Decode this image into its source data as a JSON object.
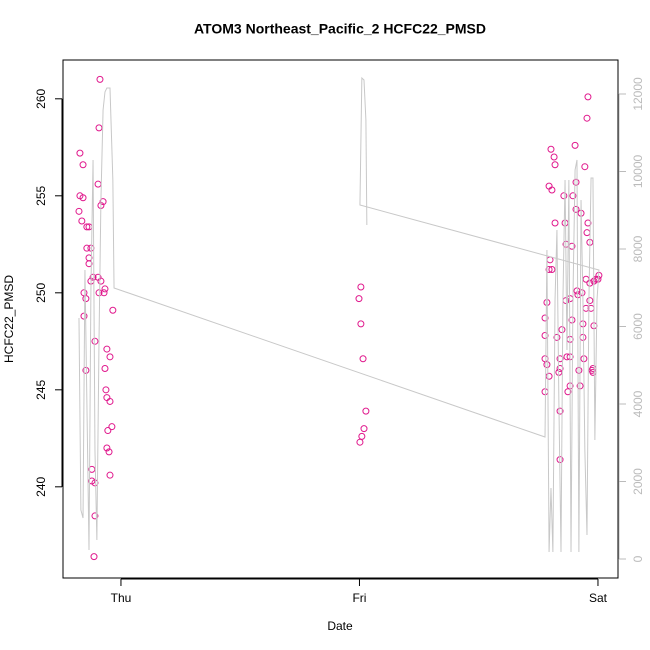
{
  "chart_data": {
    "type": "scatter",
    "title": "ATOM3 Northeast_Pacific_2 HCFC22_PMSD",
    "xlabel": "Date",
    "ylabel": "HCFC22_PMSD",
    "xlim": [
      -0.243,
      2.084
    ],
    "xticks": [
      {
        "value": 0,
        "label": "Thu"
      },
      {
        "value": 1,
        "label": "Fri"
      },
      {
        "value": 2,
        "label": "Sat"
      }
    ],
    "ylim": [
      235.3,
      262.0
    ],
    "yticks": [
      240,
      245,
      250,
      255,
      260
    ],
    "y2lim": [
      -490,
      12877
    ],
    "y2ticks": [
      0,
      2000,
      4000,
      6000,
      8000,
      10000,
      12000
    ],
    "series": [
      {
        "type": "scatter",
        "color": "#e0178c",
        "x": [
          -0.172,
          -0.159,
          -0.172,
          -0.159,
          -0.176,
          -0.164,
          -0.143,
          -0.134,
          -0.143,
          -0.126,
          -0.134,
          -0.134,
          -0.117,
          -0.155,
          -0.147,
          -0.126,
          -0.155,
          -0.109,
          -0.147,
          -0.122,
          -0.122,
          -0.109,
          -0.109,
          -0.113,
          -0.088,
          -0.092,
          -0.096,
          -0.084,
          -0.075,
          -0.096,
          -0.084,
          -0.067,
          -0.092,
          -0.071,
          -0.059,
          -0.046,
          -0.067,
          -0.063,
          -0.059,
          -0.046,
          -0.055,
          -0.038,
          -0.059,
          -0.05,
          -0.046,
          -0.034,
          1.006,
          0.998,
          1.006,
          1.015,
          1.027,
          1.019,
          1.01,
          1.002,
          1.803,
          1.816,
          1.82,
          1.795,
          1.807,
          1.82,
          1.799,
          1.795,
          1.807,
          1.786,
          1.778,
          1.778,
          1.778,
          1.786,
          1.778,
          1.795,
          1.828,
          1.841,
          1.841,
          1.836,
          1.841,
          1.841,
          1.849,
          1.857,
          1.862,
          1.866,
          1.866,
          1.87,
          1.874,
          1.883,
          1.883,
          1.883,
          1.891,
          1.883,
          1.891,
          1.895,
          1.904,
          1.908,
          1.908,
          1.912,
          1.916,
          1.92,
          1.925,
          1.929,
          1.933,
          1.937,
          1.937,
          1.941,
          1.945,
          1.95,
          1.95,
          1.954,
          1.958,
          1.958,
          1.954,
          1.966,
          1.966,
          1.966,
          1.971,
          1.975,
          1.979,
          1.979,
          1.983,
          1.983,
          2.0,
          2.004,
          1.992
        ],
        "values": [
          257.2,
          256.6,
          255.0,
          254.9,
          254.2,
          253.7,
          253.4,
          253.4,
          252.3,
          252.3,
          251.8,
          251.5,
          250.8,
          250.0,
          249.7,
          250.6,
          248.8,
          247.5,
          246.0,
          240.9,
          240.3,
          240.2,
          238.5,
          236.4,
          261.0,
          258.5,
          255.6,
          254.5,
          254.7,
          250.8,
          250.6,
          250.2,
          250.0,
          250.0,
          247.1,
          246.7,
          246.1,
          245.0,
          244.6,
          244.4,
          242.9,
          243.1,
          242.0,
          241.8,
          240.6,
          249.1,
          250.3,
          249.7,
          248.4,
          246.6,
          243.9,
          243.0,
          242.6,
          242.3,
          257.4,
          257.0,
          256.6,
          255.5,
          255.3,
          253.6,
          251.7,
          251.2,
          251.2,
          249.5,
          248.7,
          247.8,
          246.6,
          246.3,
          244.9,
          245.7,
          247.7,
          246.6,
          246.1,
          245.9,
          243.9,
          241.4,
          248.1,
          255.0,
          253.6,
          252.5,
          249.6,
          246.7,
          244.9,
          245.2,
          246.7,
          247.6,
          248.6,
          249.7,
          252.4,
          255.0,
          257.6,
          255.7,
          254.3,
          250.1,
          249.9,
          246.0,
          245.2,
          254.1,
          250.0,
          248.4,
          247.7,
          246.6,
          256.5,
          250.7,
          249.2,
          253.1,
          253.6,
          260.1,
          259.0,
          252.6,
          250.5,
          249.6,
          249.2,
          246.0,
          246.1,
          245.9,
          248.3,
          250.6,
          250.7,
          250.9,
          250.7
        ]
      },
      {
        "type": "line",
        "axis": "y2",
        "color": "#c8c8c8",
        "x": [
          -0.176,
          -0.168,
          -0.159,
          -0.151,
          -0.143,
          -0.134,
          -0.126,
          -0.117,
          -0.109,
          -0.101,
          -0.092,
          -0.084,
          -0.075,
          -0.067,
          -0.059,
          -0.046,
          -0.034,
          -0.029,
          1.778,
          1.786,
          1.795,
          1.803,
          1.811,
          1.82,
          1.828,
          1.836,
          1.845,
          1.853,
          1.862,
          1.87,
          1.878,
          1.887,
          1.895,
          1.904,
          1.912,
          1.92,
          1.929,
          1.937,
          1.945,
          1.954,
          1.962,
          1.971,
          1.979,
          1.987,
          1.996,
          2.004,
          1.002,
          1.01,
          1.019,
          1.027,
          1.031
        ],
        "values": [
          6219,
          1265,
          1058,
          7458,
          4103,
          232,
          6942,
          10297,
          2813,
          490,
          5652,
          9265,
          11587,
          12052,
          12155,
          12155,
          9781,
          6994,
          3148,
          7974,
          181,
          1832,
          181,
          6684,
          8490,
          4103,
          181,
          6684,
          9781,
          5394,
          9781,
          181,
          6684,
          10039,
          10297,
          181,
          9265,
          6684,
          2813,
          619,
          6684,
          9832,
          9832,
          3071,
          6684,
          7458,
          9135,
          12413,
          12361,
          11329,
          8619
        ]
      }
    ]
  }
}
